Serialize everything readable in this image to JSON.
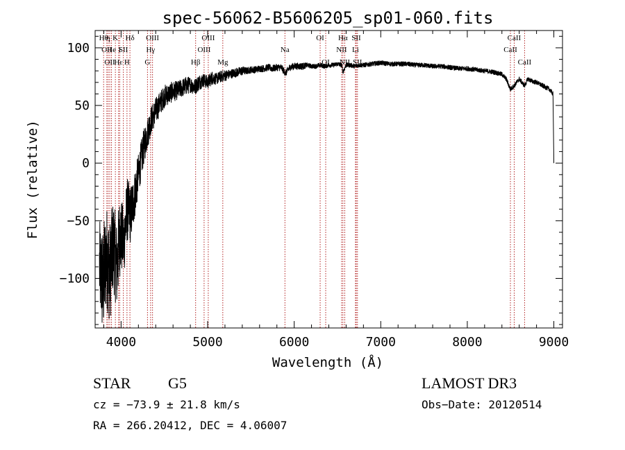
{
  "chart_data": {
    "type": "line",
    "title": "spec-56062-B5606205_sp01-060.fits",
    "xlabel": "Wavelength (Å)",
    "ylabel": "Flux (relative)",
    "xlim": [
      3700,
      9100
    ],
    "ylim": [
      -143,
      115
    ],
    "xticks": [
      4000,
      5000,
      6000,
      7000,
      8000,
      9000
    ],
    "yticks": [
      -100,
      -50,
      0,
      50,
      100
    ],
    "grid": false,
    "series": [
      {
        "name": "spectrum",
        "color": "#000000",
        "x": [
          3750,
          3790,
          3830,
          3870,
          3910,
          3950,
          3990,
          4030,
          4070,
          4110,
          4150,
          4200,
          4250,
          4300,
          4350,
          4400,
          4450,
          4500,
          4550,
          4600,
          4650,
          4700,
          4750,
          4800,
          4850,
          4900,
          4950,
          5000,
          5050,
          5100,
          5150,
          5200,
          5250,
          5300,
          5350,
          5400,
          5450,
          5500,
          5550,
          5600,
          5650,
          5700,
          5750,
          5800,
          5850,
          5900,
          5950,
          6000,
          6050,
          6100,
          6150,
          6200,
          6250,
          6300,
          6350,
          6400,
          6450,
          6500,
          6550,
          6563,
          6600,
          6650,
          6700,
          6750,
          6800,
          6900,
          7000,
          7100,
          7200,
          7300,
          7400,
          7500,
          7600,
          7700,
          7800,
          7900,
          8000,
          8100,
          8200,
          8300,
          8400,
          8450,
          8498,
          8542,
          8600,
          8662,
          8700,
          8750,
          8800,
          8850,
          8900,
          8950,
          8990,
          9000
        ],
        "values": [
          -90,
          -105,
          -80,
          -95,
          -70,
          -90,
          -60,
          -70,
          -40,
          -45,
          -30,
          -10,
          10,
          25,
          38,
          45,
          52,
          58,
          60,
          62,
          63,
          65,
          67,
          68,
          66,
          70,
          72,
          70,
          74,
          73,
          75,
          76,
          77,
          78,
          79,
          80,
          80,
          81,
          81,
          82,
          82,
          83,
          82,
          83,
          83,
          78,
          83,
          84,
          84,
          84,
          85,
          84,
          84,
          85,
          84,
          85,
          85,
          86,
          85,
          79,
          85,
          85,
          84,
          85,
          85,
          86,
          87,
          86,
          86,
          86,
          85,
          85,
          84,
          84,
          83,
          82,
          82,
          81,
          80,
          79,
          77,
          73,
          64,
          67,
          73,
          67,
          73,
          71,
          70,
          68,
          66,
          64,
          60,
          0
        ],
        "noise": [
          40,
          50,
          45,
          45,
          40,
          38,
          35,
          30,
          28,
          25,
          22,
          18,
          16,
          14,
          12,
          12,
          10,
          10,
          9,
          9,
          8,
          8,
          8,
          7,
          7,
          7,
          6,
          6,
          6,
          5,
          5,
          5,
          4,
          4,
          4,
          4,
          3,
          3,
          3,
          3,
          3,
          3,
          3,
          3,
          3,
          3,
          3,
          3,
          3,
          3,
          2,
          2,
          2,
          2,
          2,
          2,
          2,
          2,
          2,
          2,
          2,
          2,
          2,
          2,
          2,
          2,
          2,
          2,
          2,
          2,
          2,
          2,
          2,
          2,
          2,
          2,
          2,
          2,
          2,
          2,
          2,
          2,
          2,
          2,
          2,
          2,
          2,
          2,
          2,
          2,
          2,
          2,
          2,
          0
        ]
      }
    ],
    "lines": [
      {
        "x": 3798,
        "row": 1,
        "label": "Hθ"
      },
      {
        "x": 3835,
        "row": 2,
        "label": "OII"
      },
      {
        "x": 3850,
        "row": 1,
        "label": "η"
      },
      {
        "x": 3869,
        "row": 3,
        "label": "OII"
      },
      {
        "x": 3889,
        "row": 2,
        "label": "He"
      },
      {
        "x": 3934,
        "row": 1,
        "label": "K"
      },
      {
        "x": 3970,
        "row": 3,
        "label": "Hε"
      },
      {
        "x": 3984,
        "row": 2,
        "label": "I"
      },
      {
        "x": 4026,
        "row": 2,
        "label": "SII"
      },
      {
        "x": 4068,
        "row": 3,
        "label": "H"
      },
      {
        "x": 4102,
        "row": 1,
        "label": "Hδ"
      },
      {
        "x": 4305,
        "row": 3,
        "label": "G"
      },
      {
        "x": 4341,
        "row": 2,
        "label": "Hγ"
      },
      {
        "x": 4363,
        "row": 1,
        "label": "OIII"
      },
      {
        "x": 4861,
        "row": 3,
        "label": "Hβ"
      },
      {
        "x": 4959,
        "row": 2,
        "label": "OIII"
      },
      {
        "x": 5007,
        "row": 1,
        "label": "OIII"
      },
      {
        "x": 5175,
        "row": 3,
        "label": "Mg"
      },
      {
        "x": 5893,
        "row": 2,
        "label": "Na"
      },
      {
        "x": 6300,
        "row": 1,
        "label": "OI"
      },
      {
        "x": 6364,
        "row": 3,
        "label": "OI"
      },
      {
        "x": 6548,
        "row": 2,
        "label": "NII"
      },
      {
        "x": 6563,
        "row": 1,
        "label": "Hα"
      },
      {
        "x": 6584,
        "row": 3,
        "label": "NII"
      },
      {
        "x": 6708,
        "row": 2,
        "label": "Li"
      },
      {
        "x": 6717,
        "row": 1,
        "label": "SII"
      },
      {
        "x": 6731,
        "row": 3,
        "label": "SII"
      },
      {
        "x": 8498,
        "row": 2,
        "label": "CaII"
      },
      {
        "x": 8542,
        "row": 1,
        "label": "CaII"
      },
      {
        "x": 8662,
        "row": 3,
        "label": "CaII"
      }
    ]
  },
  "info": {
    "class": "STAR",
    "subclass": "G5",
    "survey": "LAMOST DR3",
    "cz": "cz = −73.9 ± 21.8 km/s",
    "obs_date": "Obs−Date: 20120514",
    "radec": "RA = 266.20412, DEC =   4.06007"
  }
}
